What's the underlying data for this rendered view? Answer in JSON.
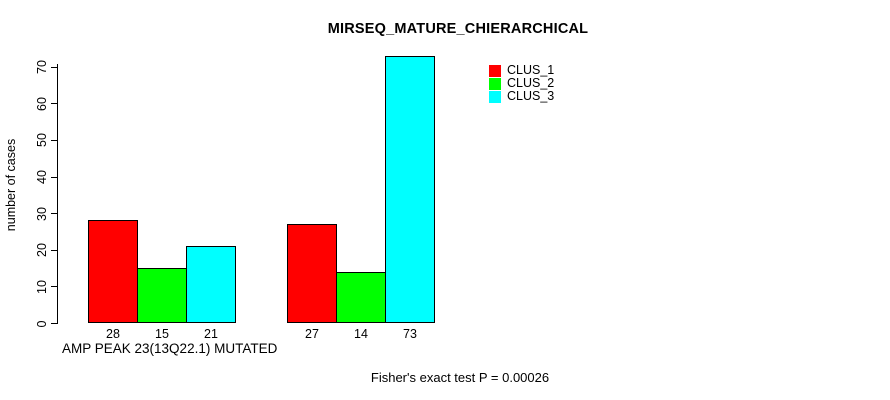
{
  "chart_data": {
    "type": "bar",
    "title": "MIRSEQ_MATURE_CHIERARCHICAL",
    "ylabel": "number of cases",
    "xlabel": "AMP PEAK 23(13Q22.1) MUTATED",
    "categories": [
      "AMP PEAK 23(13Q22.1) MUTATED",
      ""
    ],
    "series": [
      {
        "name": "CLUS_1",
        "color": "#FF0000",
        "values": [
          28,
          27
        ]
      },
      {
        "name": "CLUS_2",
        "color": "#00FF00",
        "values": [
          15,
          14
        ]
      },
      {
        "name": "CLUS_3",
        "color": "#00FFFF",
        "values": [
          21,
          73
        ]
      }
    ],
    "bar_value_labels": [
      [
        28,
        15,
        21
      ],
      [
        27,
        14,
        73
      ]
    ],
    "yticks": [
      0,
      10,
      20,
      30,
      40,
      50,
      60,
      70
    ],
    "ylim": [
      0,
      73
    ],
    "grid": false,
    "legend_position": "top-right",
    "annotation": "Fisher's exact test P = 0.00026",
    "axis_color": "#000000",
    "background_color": "#FFFFFF"
  }
}
